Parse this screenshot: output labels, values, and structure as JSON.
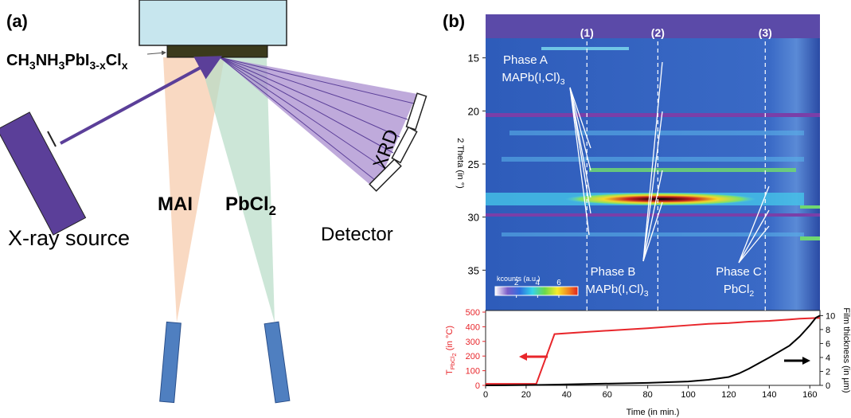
{
  "panel_a": {
    "label": "(a)",
    "formula": [
      "CH",
      "3",
      "NH",
      "3",
      "PbI",
      "3-x",
      "Cl",
      "x"
    ],
    "source_left": "MAI",
    "source_right": [
      "PbCl",
      "2"
    ],
    "xray_source": "X-ray source",
    "detector": "Detector",
    "xrd": "XRD"
  },
  "panel_b": {
    "label": "(b)",
    "ylabel": "2 Theta (in °)",
    "ylim": [
      10.9,
      38.8
    ],
    "yticks": [
      15,
      20,
      25,
      30,
      35
    ],
    "colorbar": {
      "label": "kcounts (a.u.)",
      "lim": [
        0,
        7.8
      ],
      "ticks": [
        2,
        4,
        6
      ]
    },
    "phases": [
      {
        "name": "Phase A",
        "formula": [
          "MAPb(I,Cl)",
          "3"
        ]
      },
      {
        "name": "Phase B",
        "formula": [
          "MAPb(I,Cl)",
          "3"
        ]
      },
      {
        "name": "Phase C",
        "formula": [
          "PbCl",
          "2"
        ]
      }
    ]
  },
  "chart_data": {
    "type": "line",
    "xlabel": "Time (in min.)",
    "ylabel": [
      "T",
      "PbCl",
      "2",
      " (in °C)"
    ],
    "y2label": "Film thickness (in µm)",
    "x": [
      0,
      25,
      34,
      50,
      80,
      100,
      110,
      120,
      125,
      130,
      140,
      150,
      155,
      160,
      163,
      165
    ],
    "xlim": [
      0,
      165
    ],
    "xticks": [
      0,
      20,
      40,
      60,
      80,
      100,
      120,
      140,
      160
    ],
    "ylim": [
      0,
      500
    ],
    "yticks": [
      0,
      100,
      200,
      300,
      400,
      500
    ],
    "y2lim": [
      0,
      10.5
    ],
    "y2ticks": [
      0,
      2,
      4,
      6,
      8,
      10
    ],
    "series": [
      {
        "name": "Temperature",
        "color": "#e8262b",
        "values": [
          10,
          10,
          350,
          365,
          390,
          410,
          420,
          425,
          430,
          435,
          440,
          450,
          455,
          458,
          460,
          460
        ]
      },
      {
        "name": "Film thickness",
        "color": "#000000",
        "axis": "y2",
        "values": [
          0,
          0.05,
          0.1,
          0.2,
          0.35,
          0.55,
          0.8,
          1.2,
          1.7,
          2.4,
          4,
          5.7,
          7,
          8.6,
          9.7,
          10
        ]
      }
    ],
    "annotations": [
      {
        "label": "(1)",
        "x": 50
      },
      {
        "label": "(2)",
        "x": 85
      },
      {
        "label": "(3)",
        "x": 138
      }
    ]
  }
}
